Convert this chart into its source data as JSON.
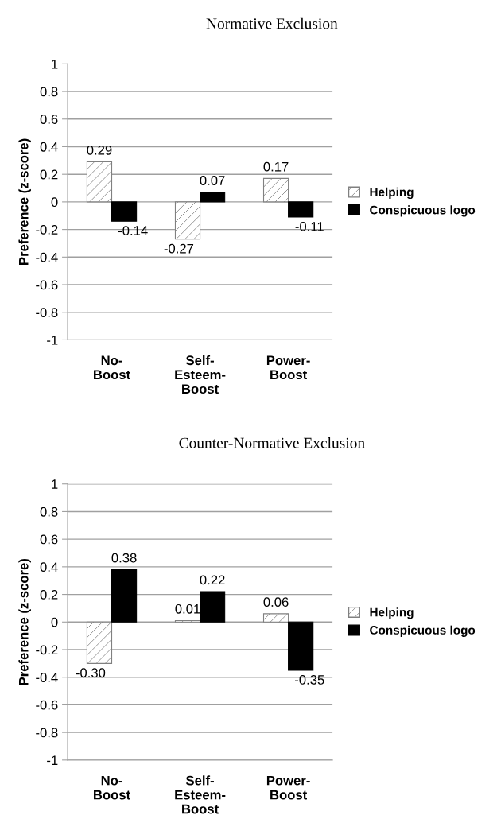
{
  "chart_data": [
    {
      "type": "bar",
      "title": "Normative Exclusion",
      "ylabel": "Preference (z-score)",
      "categories": [
        "No-\nBoost",
        "Self-\nEsteem-\nBoost",
        "Power-\nBoost"
      ],
      "series": [
        {
          "name": "Helping",
          "color": "#808080",
          "values": [
            0.29,
            -0.27,
            0.17
          ],
          "value_labels": [
            "0.29",
            "-0.27",
            "0.17"
          ]
        },
        {
          "name": "Conspicuous logo",
          "color": "#000000",
          "values": [
            -0.14,
            0.07,
            -0.11
          ],
          "value_labels": [
            "-0.14",
            "0.07",
            "-0.11"
          ]
        }
      ],
      "ylim": [
        -1,
        1
      ],
      "yticks": [
        -1,
        -0.8,
        -0.6,
        -0.4,
        -0.2,
        0,
        0.2,
        0.4,
        0.6,
        0.8,
        1
      ],
      "grid": "y",
      "legend": "right"
    },
    {
      "type": "bar",
      "title": "Counter-Normative Exclusion",
      "ylabel": "Preference (z-score)",
      "categories": [
        "No-\nBoost",
        "Self-\nEsteem-\nBoost",
        "Power-\nBoost"
      ],
      "series": [
        {
          "name": "Helping",
          "color": "#808080",
          "values": [
            -0.3,
            0.01,
            0.06
          ],
          "value_labels": [
            "-0.30",
            "0.01",
            "0.06"
          ]
        },
        {
          "name": "Conspicuous logo",
          "color": "#000000",
          "values": [
            0.38,
            0.22,
            -0.35
          ],
          "value_labels": [
            "0.38",
            "0.22",
            "-0.35"
          ]
        }
      ],
      "ylim": [
        -1,
        1
      ],
      "yticks": [
        -1,
        -0.8,
        -0.6,
        -0.4,
        -0.2,
        0,
        0.2,
        0.4,
        0.6,
        0.8,
        1
      ],
      "grid": "y",
      "legend": "right"
    }
  ]
}
